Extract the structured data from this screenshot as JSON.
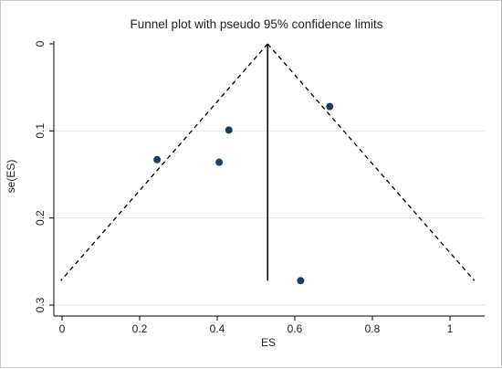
{
  "chart_data": {
    "type": "scatter",
    "title": "Funnel plot with pseudo 95% confidence limits",
    "xlabel": "ES",
    "ylabel": "se(ES)",
    "xlim": [
      0,
      1.07
    ],
    "ylim": [
      0,
      0.3
    ],
    "y_reversed": true,
    "x_ticks": [
      0,
      0.2,
      0.4,
      0.6,
      0.8,
      1
    ],
    "x_tick_labels": [
      "0",
      "0.2",
      "0.4",
      "0.6",
      "0.8",
      "1"
    ],
    "y_ticks": [
      0,
      0.1,
      0.2,
      0.3
    ],
    "y_tick_labels": [
      "0",
      "0.1",
      "0.2",
      "0.3"
    ],
    "grid": "horizontal",
    "legend": "none",
    "points": [
      {
        "x": 0.245,
        "y": 0.133
      },
      {
        "x": 0.405,
        "y": 0.136
      },
      {
        "x": 0.43,
        "y": 0.099
      },
      {
        "x": 0.69,
        "y": 0.072
      },
      {
        "x": 0.615,
        "y": 0.272
      }
    ],
    "pooled_estimate": 0.53,
    "line_max_se": 0.272,
    "ci_factor": 1.96,
    "colors": {
      "points": "#1f3d5c",
      "lines": "#000000",
      "grid": "#e6e6e6",
      "axis": "#000000",
      "text": "#222222"
    }
  }
}
